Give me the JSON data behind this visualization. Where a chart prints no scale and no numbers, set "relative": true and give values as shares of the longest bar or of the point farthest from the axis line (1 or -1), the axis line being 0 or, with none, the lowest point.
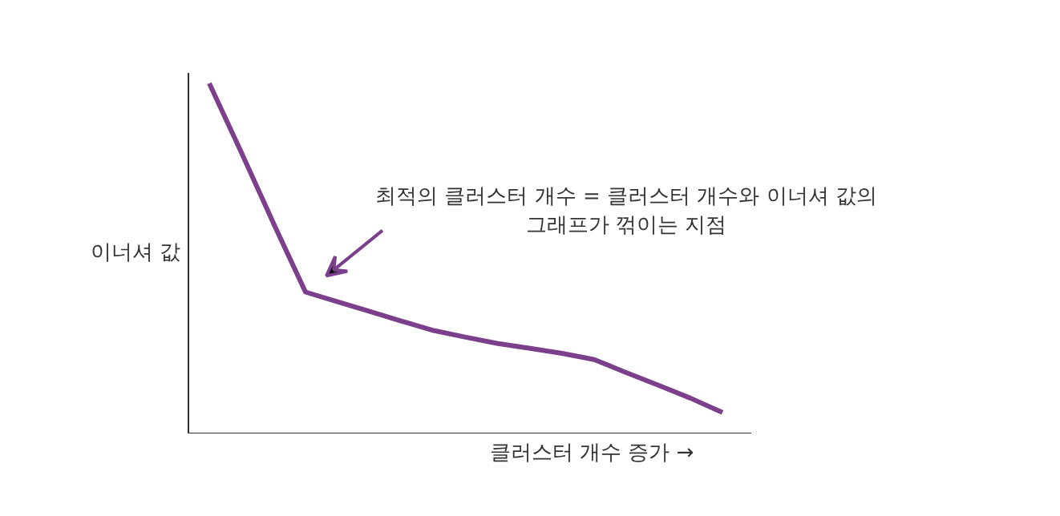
{
  "chart_data": {
    "type": "line",
    "relative": true,
    "xlabel": "클러스터 개수 증가 →",
    "ylabel": "이너셔 값",
    "categories": [
      null,
      null,
      null,
      null,
      null,
      null,
      null,
      null,
      null,
      null,
      null,
      null,
      null,
      null,
      null,
      null,
      null
    ],
    "series": [
      {
        "color": "#7b3f8c",
        "values": [
          1,
          0.803,
          0.601,
          0.404,
          0.376,
          0.349,
          0.321,
          0.294,
          0.275,
          0.257,
          0.243,
          0.229,
          0.211,
          0.174,
          0.138,
          0.101,
          0.06
        ]
      }
    ],
    "annotations": [
      "최적의 클러스터 개수 = 클러스터 개수와 이너셔 값의\n그래프가 꺾이는 지점"
    ],
    "marker": "none",
    "line_style": "solid"
  }
}
